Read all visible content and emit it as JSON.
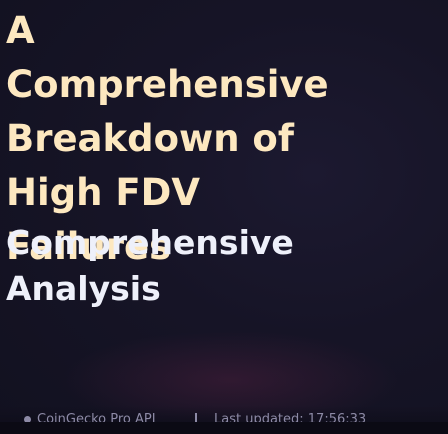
{
  "title_lines": [
    "A",
    "Comprehensive",
    "Breakdown of",
    "High FDV",
    "Failures"
  ],
  "subtitle_lines": [
    "Comprehensive",
    "Analysis"
  ],
  "status": {
    "source": "CoinGecko Pro API",
    "updated": "Last updated: 17:56:33"
  },
  "colors": {
    "title": "#fde8c0",
    "subtitle": "#eef0fa",
    "background": "#141322",
    "status_text": "#8d8aa6"
  }
}
